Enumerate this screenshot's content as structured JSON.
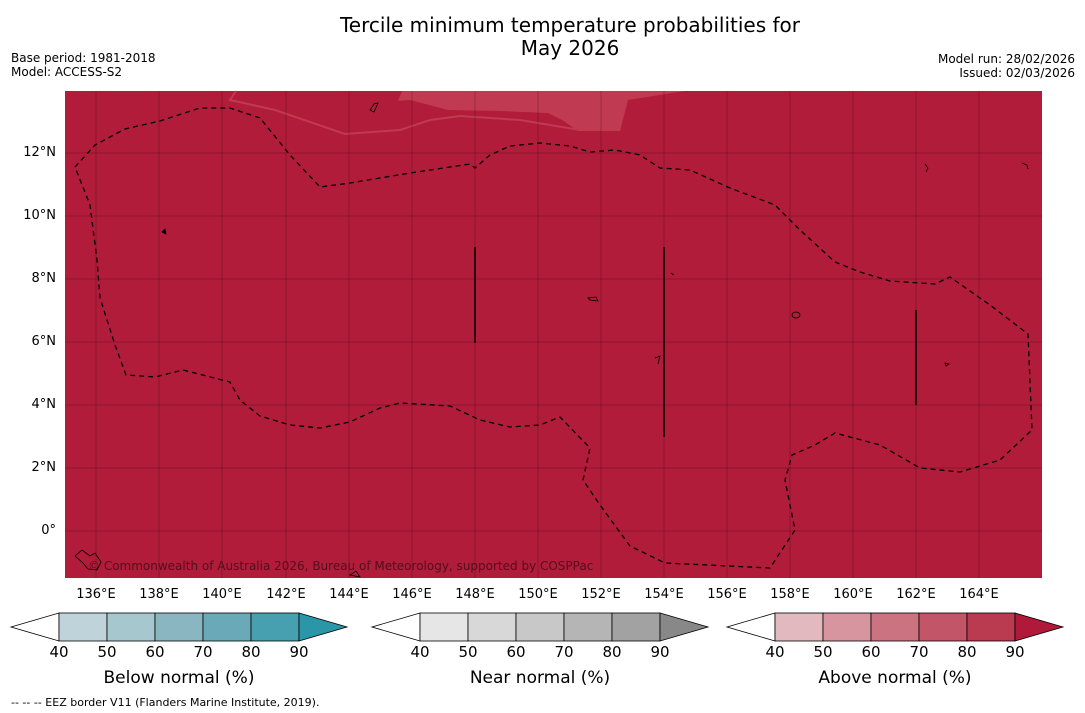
{
  "title": {
    "line1": "Tercile minimum temperature probabilities for",
    "line2": "May 2026"
  },
  "meta": {
    "base_period": "Base period: 1981-2018",
    "model": "Model: ACCESS-S2",
    "model_run": "Model run: 28/02/2026",
    "issued": "Issued: 02/03/2026"
  },
  "colors": {
    "main": "#b11c3a",
    "light_patch": "#c03a51"
  },
  "lat_labels": [
    "12°N",
    "10°N",
    "8°N",
    "6°N",
    "4°N",
    "2°N",
    "0°"
  ],
  "lon_labels": [
    "136°E",
    "138°E",
    "140°E",
    "142°E",
    "144°E",
    "146°E",
    "148°E",
    "150°E",
    "152°E",
    "154°E",
    "156°E",
    "158°E",
    "160°E",
    "162°E",
    "164°E"
  ],
  "copyright": "© Commonwealth of Australia 2026, Bureau of Meteorology, supported by COSPPac",
  "colorbars": [
    {
      "name": "below",
      "title": "Below normal (%)",
      "ticks": [
        "40",
        "50",
        "60",
        "70",
        "80",
        "90"
      ],
      "colors": [
        "#ffffff",
        "#bed4da",
        "#a7c7ce",
        "#89b6c1",
        "#6aaab8",
        "#46a0b0",
        "#2b96a8"
      ]
    },
    {
      "name": "near",
      "title": "Near normal (%)",
      "ticks": [
        "40",
        "50",
        "60",
        "70",
        "80",
        "90"
      ],
      "colors": [
        "#ffffff",
        "#e6e6e6",
        "#d8d8d8",
        "#c8c8c8",
        "#b5b5b5",
        "#a2a2a2",
        "#888888"
      ]
    },
    {
      "name": "above",
      "title": "Above normal (%)",
      "ticks": [
        "40",
        "50",
        "60",
        "70",
        "80",
        "90"
      ],
      "colors": [
        "#ffffff",
        "#e2b9bf",
        "#d7959f",
        "#cb7381",
        "#c25568",
        "#ba3a50",
        "#b1193a"
      ]
    }
  ],
  "footnote": "-- -- -- EEZ border V11 (Flanders Marine Institute, 2019)."
}
